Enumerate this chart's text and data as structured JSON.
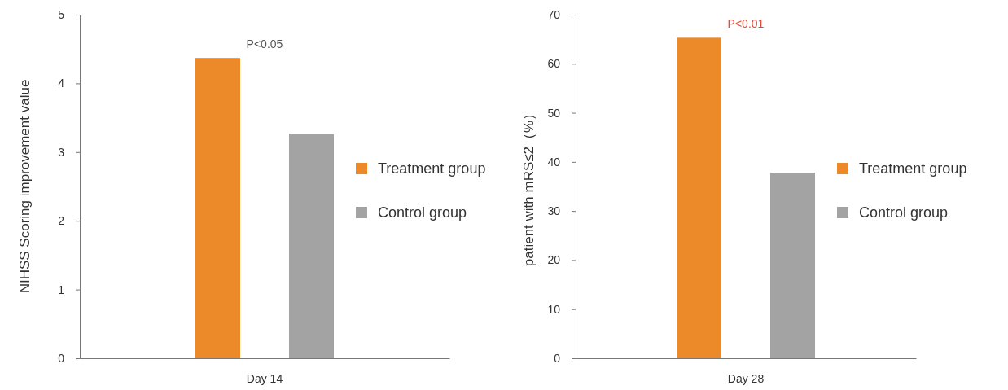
{
  "chart_data": [
    {
      "type": "bar",
      "ylabel": "NIHSS Scoring improvement value",
      "categories": [
        "Day 14"
      ],
      "series": [
        {
          "name": "Treatment group",
          "color": "#ec8a2a",
          "values": [
            4.37
          ]
        },
        {
          "name": "Control group",
          "color": "#a3a3a3",
          "values": [
            3.27
          ]
        }
      ],
      "ylim": [
        0,
        5
      ],
      "yticks": [
        0,
        1,
        2,
        3,
        4,
        5
      ],
      "legend": "right",
      "annotations": [
        "P<0.05"
      ]
    },
    {
      "type": "bar",
      "ylabel": "patient with mRS≤2（%）",
      "categories": [
        "Day 28"
      ],
      "series": [
        {
          "name": "Treatment group",
          "color": "#ec8a2a",
          "values": [
            65.3
          ]
        },
        {
          "name": "Control group",
          "color": "#a3a3a3",
          "values": [
            37.8
          ]
        }
      ],
      "ylim": [
        0,
        70
      ],
      "yticks": [
        0,
        10,
        20,
        30,
        40,
        50,
        60,
        70
      ],
      "legend": "right",
      "annotations": [
        "P<0.01"
      ]
    }
  ]
}
